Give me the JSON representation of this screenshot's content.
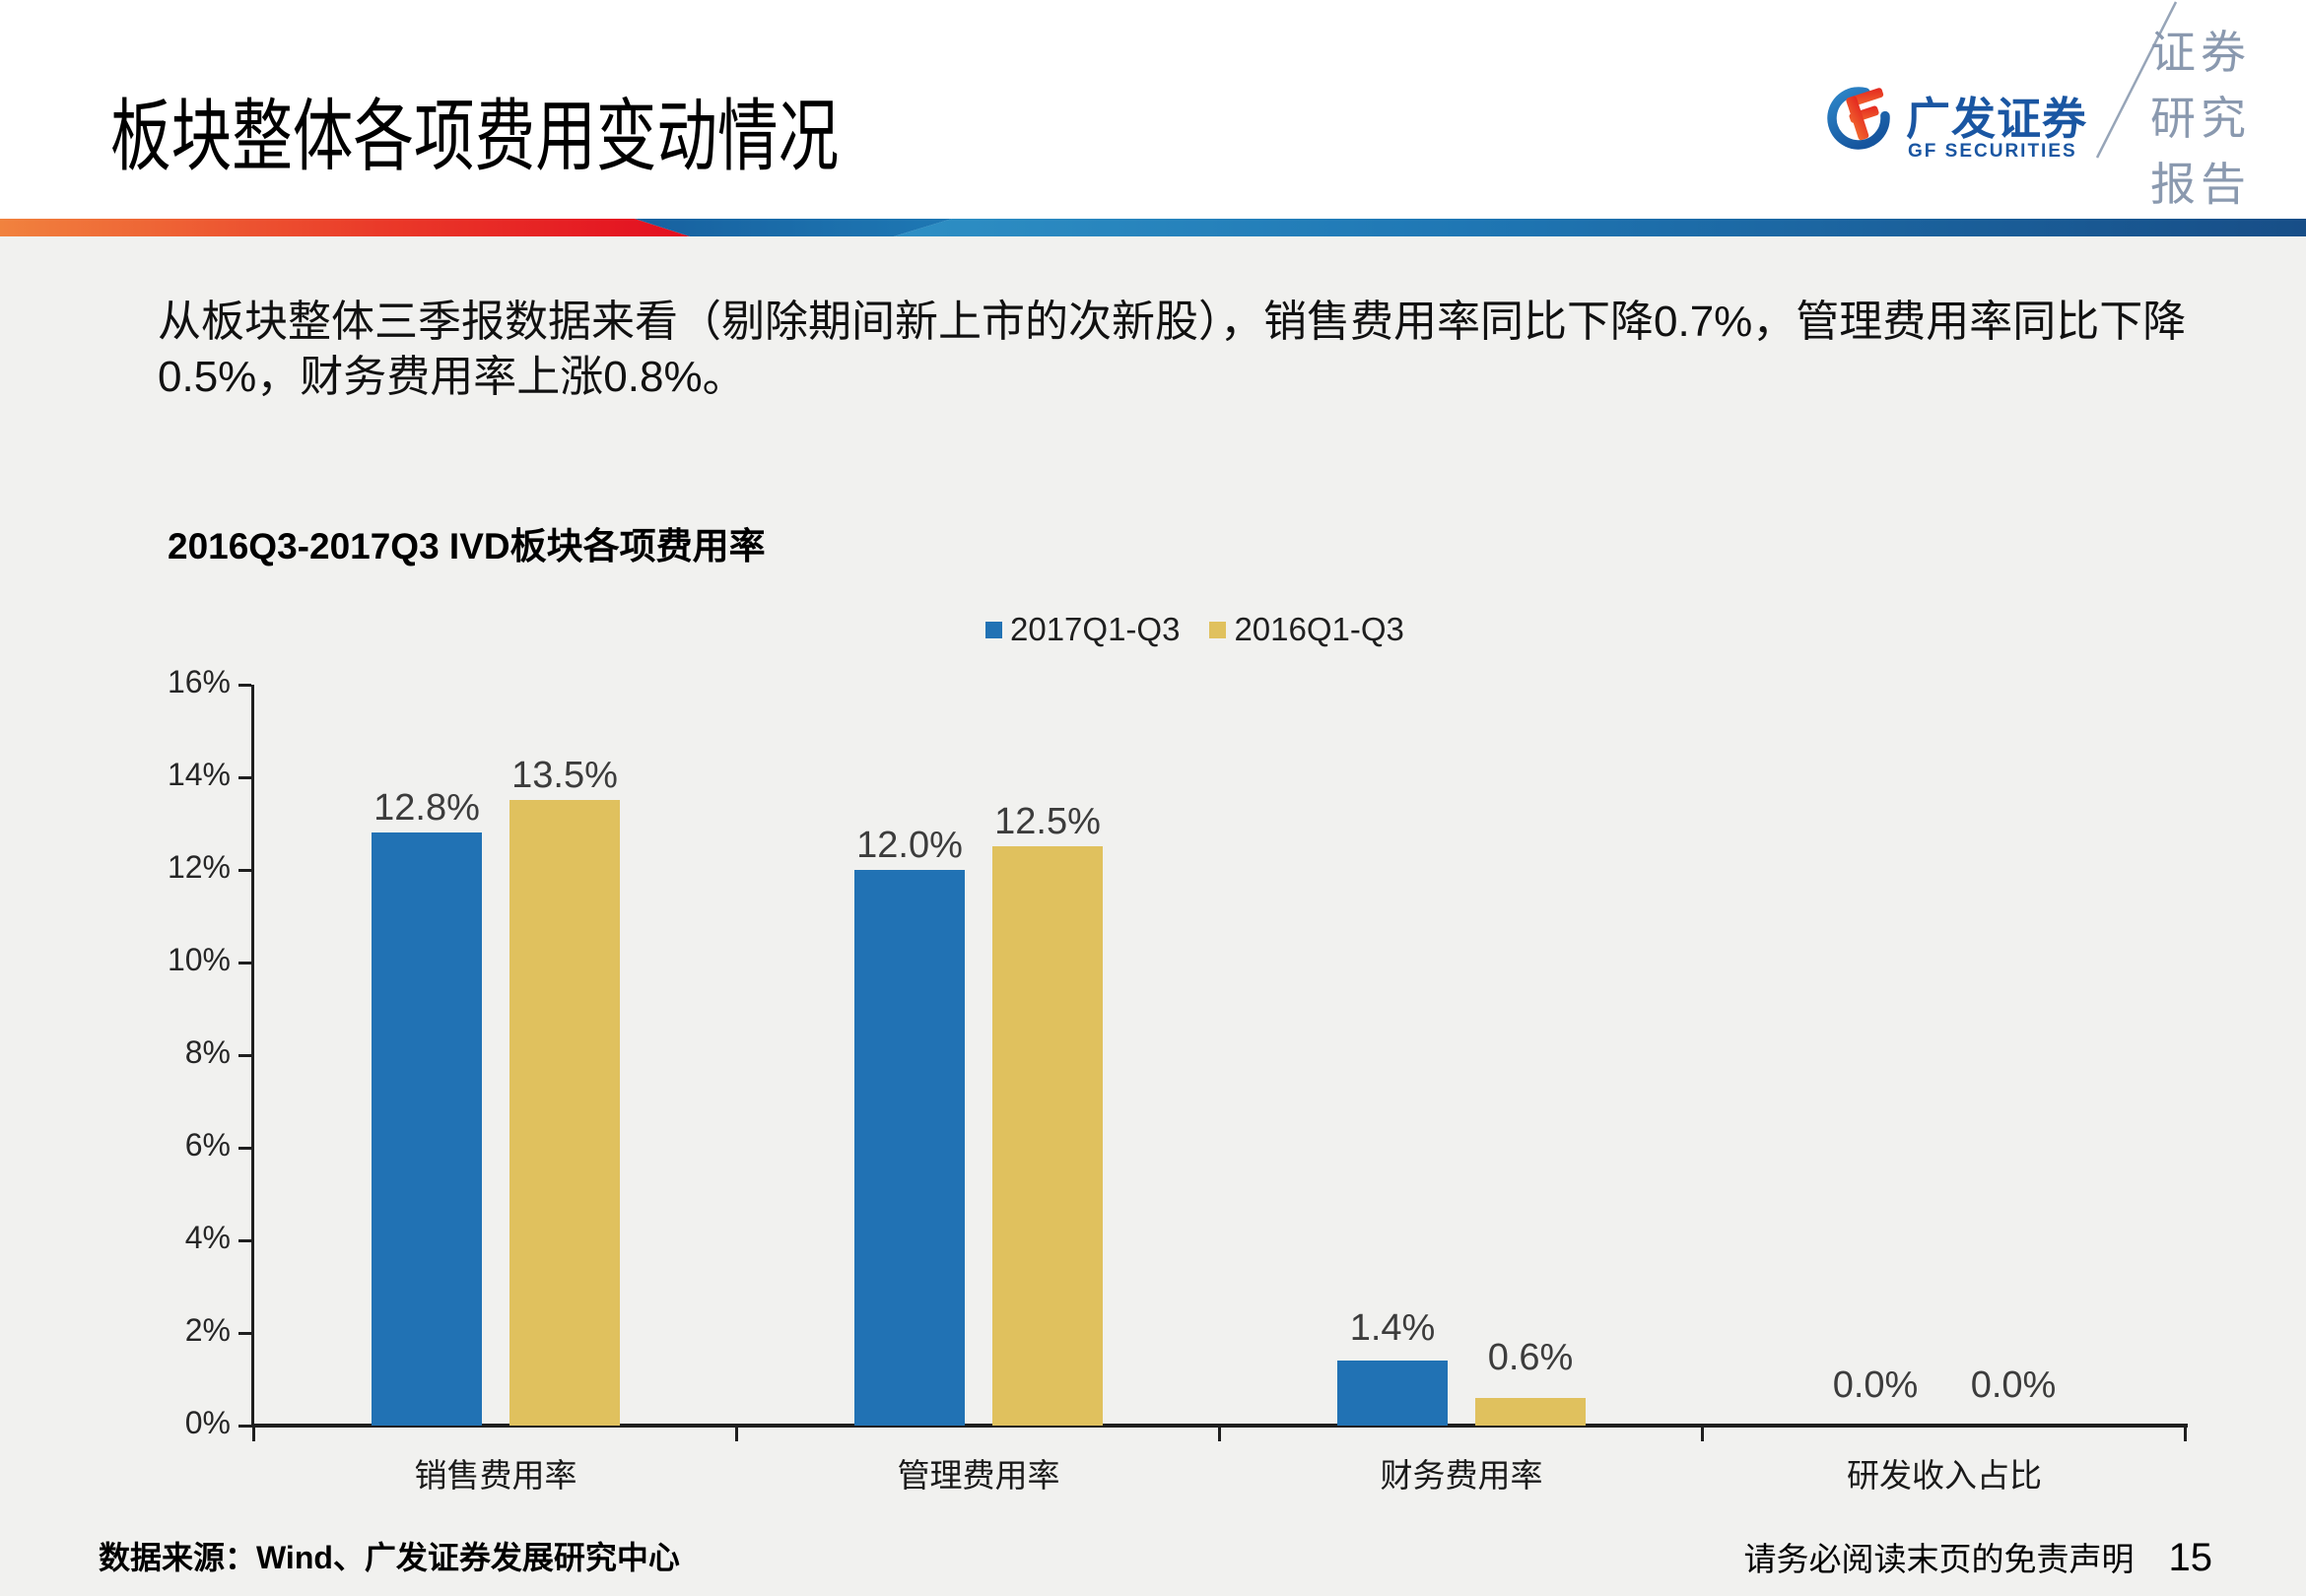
{
  "page": {
    "title": "板块整体各项费用变动情况",
    "body_line1": "从板块整体三季报数据来看（剔除期间新上市的次新股），销售费用率同比下降0.7%，管理费用率同比下降",
    "body_line2": "0.5%，财务费用率上涨0.8%。",
    "footer_left": "数据来源：Wind、广发证券发展研究中心",
    "footer_right": "请务必阅读末页的免责声明",
    "page_number": "15"
  },
  "logo": {
    "brand_cn": "广发证券",
    "brand_en": "GF SECURITIES",
    "side_label_lines": "证券研究报告",
    "brand_color": "#1A56A2",
    "side_label_color": "#8A99AF"
  },
  "colors": {
    "divider_red": "#E30E20",
    "divider_orange": "#F1823E",
    "divider_blue_dark": "#174E87",
    "divider_blue_light": "#2E8FC4",
    "background_lower": "#F1F1EF"
  },
  "chart_data": {
    "type": "bar",
    "title": "2016Q3-2017Q3 IVD板块各项费用率",
    "categories": [
      "销售费用率",
      "管理费用率",
      "财务费用率",
      "研发收入占比"
    ],
    "series": [
      {
        "name": "2017Q1-Q3",
        "color": "#2172B4",
        "values": [
          12.8,
          12.0,
          1.4,
          0.0
        ]
      },
      {
        "name": "2016Q1-Q3",
        "color": "#E0C15E",
        "values": [
          13.5,
          12.5,
          0.6,
          0.0
        ]
      }
    ],
    "value_suffix": "%",
    "ylim": [
      0,
      16
    ],
    "ytick_step": 2,
    "grid": false,
    "legend_position": "top-center"
  }
}
